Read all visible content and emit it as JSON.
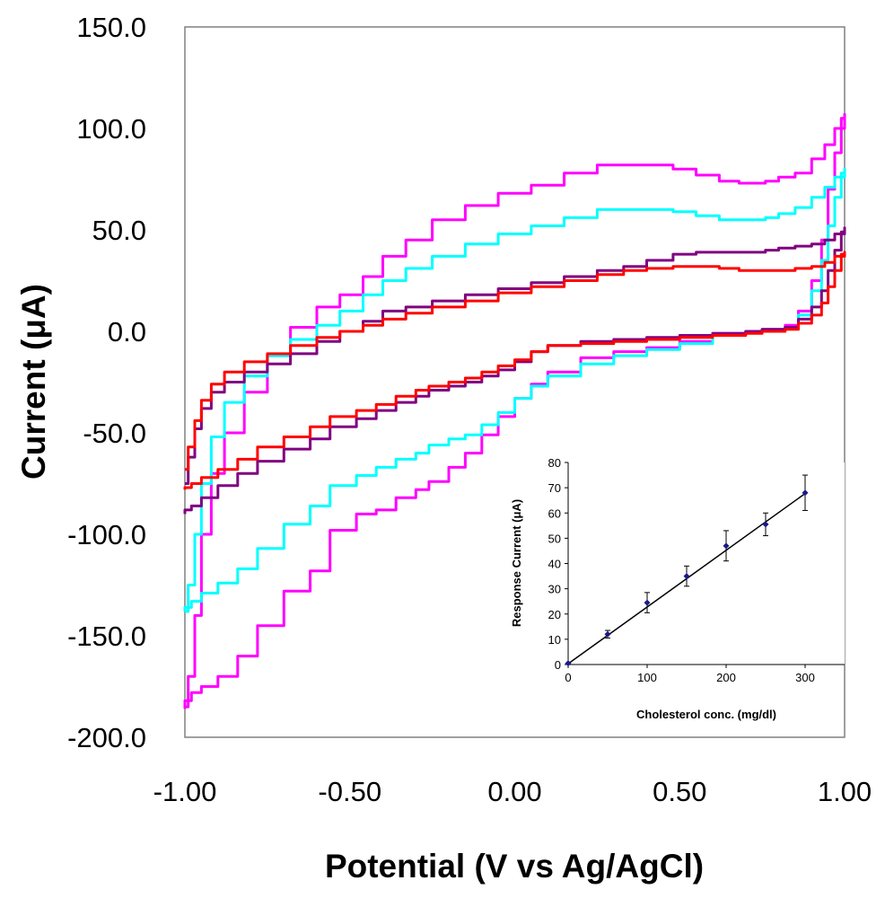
{
  "chart_data": [
    {
      "type": "line",
      "title": "",
      "xlabel": "Potential (V vs Ag/AgCl)",
      "ylabel": "Current (μA)",
      "xlim": [
        -1.0,
        1.0
      ],
      "ylim": [
        -200.0,
        150.0
      ],
      "xticks": [
        -1.0,
        -0.5,
        0.0,
        0.5,
        1.0
      ],
      "xtick_labels": [
        "-1.00",
        "-0.50",
        "0.00",
        "0.50",
        "1.00"
      ],
      "yticks": [
        150,
        100,
        50,
        0,
        -50,
        -100,
        -150,
        -200
      ],
      "ytick_labels": [
        "150.0",
        "100.0",
        "50.0",
        "0.0",
        "-50.0",
        "-100.0",
        "-150.0",
        "-200.0"
      ],
      "grid": false,
      "series": [
        {
          "name": "magenta",
          "color": "#ff00ff",
          "x": [
            -1.0,
            -0.99,
            -0.97,
            -0.95,
            -0.92,
            -0.88,
            -0.82,
            -0.75,
            -0.68,
            -0.6,
            -0.53,
            -0.46,
            -0.4,
            -0.33,
            -0.25,
            -0.15,
            -0.05,
            0.05,
            0.15,
            0.25,
            0.33,
            0.4,
            0.48,
            0.55,
            0.62,
            0.68,
            0.72,
            0.76,
            0.8,
            0.85,
            0.9,
            0.94,
            0.97,
            1.0,
            1.0,
            0.99,
            0.97,
            0.95,
            0.93,
            0.9,
            0.86,
            0.82,
            0.75,
            0.7,
            0.6,
            0.5,
            0.4,
            0.3,
            0.2,
            0.1,
            0.05,
            0.0,
            -0.05,
            -0.1,
            -0.15,
            -0.2,
            -0.26,
            -0.3,
            -0.36,
            -0.42,
            -0.48,
            -0.56,
            -0.62,
            -0.7,
            -0.78,
            -0.84,
            -0.9,
            -0.95,
            -0.98,
            -1.0
          ],
          "y": [
            -185,
            -170,
            -140,
            -100,
            -70,
            -50,
            -30,
            -12,
            2,
            12,
            18,
            27,
            37,
            45,
            55,
            62,
            68,
            72,
            78,
            82,
            82,
            82,
            80,
            77,
            74,
            73,
            73,
            74,
            76,
            78,
            85,
            92,
            100,
            107,
            105,
            88,
            70,
            45,
            25,
            10,
            3,
            1,
            0,
            -1,
            -5,
            -8,
            -10,
            -13,
            -20,
            -26,
            -33,
            -42,
            -51,
            -60,
            -67,
            -74,
            -78,
            -82,
            -88,
            -90,
            -98,
            -118,
            -128,
            -145,
            -160,
            -170,
            -175,
            -178,
            -182,
            -186
          ]
        },
        {
          "name": "cyan",
          "color": "#00ffff",
          "x": [
            -1.0,
            -0.99,
            -0.97,
            -0.95,
            -0.92,
            -0.88,
            -0.82,
            -0.75,
            -0.68,
            -0.6,
            -0.53,
            -0.46,
            -0.4,
            -0.33,
            -0.25,
            -0.15,
            -0.05,
            0.05,
            0.15,
            0.25,
            0.33,
            0.4,
            0.48,
            0.55,
            0.62,
            0.68,
            0.72,
            0.76,
            0.8,
            0.85,
            0.9,
            0.94,
            0.97,
            1.0,
            1.0,
            0.99,
            0.97,
            0.95,
            0.93,
            0.9,
            0.86,
            0.82,
            0.75,
            0.7,
            0.6,
            0.5,
            0.4,
            0.3,
            0.2,
            0.1,
            0.05,
            0.0,
            -0.05,
            -0.1,
            -0.15,
            -0.2,
            -0.26,
            -0.3,
            -0.36,
            -0.42,
            -0.48,
            -0.56,
            -0.62,
            -0.7,
            -0.78,
            -0.84,
            -0.9,
            -0.95,
            -0.98,
            -1.0
          ],
          "y": [
            -138,
            -125,
            -100,
            -75,
            -52,
            -35,
            -22,
            -12,
            -4,
            3,
            10,
            18,
            25,
            31,
            37,
            43,
            48,
            52,
            56,
            60,
            60,
            60,
            59,
            57,
            55,
            55,
            55,
            56,
            58,
            61,
            66,
            71,
            76,
            80,
            78,
            66,
            52,
            35,
            20,
            8,
            2,
            1,
            0,
            -2,
            -6,
            -9,
            -12,
            -16,
            -22,
            -27,
            -33,
            -40,
            -46,
            -51,
            -53,
            -56,
            -60,
            -63,
            -67,
            -71,
            -76,
            -86,
            -95,
            -107,
            -117,
            -124,
            -129,
            -133,
            -136,
            -138
          ]
        },
        {
          "name": "purple",
          "color": "#800080",
          "x": [
            -1.0,
            -0.99,
            -0.97,
            -0.95,
            -0.92,
            -0.88,
            -0.82,
            -0.75,
            -0.68,
            -0.6,
            -0.53,
            -0.46,
            -0.4,
            -0.33,
            -0.25,
            -0.15,
            -0.05,
            0.05,
            0.15,
            0.25,
            0.33,
            0.4,
            0.48,
            0.55,
            0.62,
            0.68,
            0.72,
            0.76,
            0.8,
            0.85,
            0.9,
            0.94,
            0.97,
            1.0,
            1.0,
            0.99,
            0.97,
            0.95,
            0.93,
            0.9,
            0.86,
            0.82,
            0.75,
            0.7,
            0.6,
            0.5,
            0.4,
            0.3,
            0.2,
            0.1,
            0.05,
            0.0,
            -0.05,
            -0.1,
            -0.15,
            -0.2,
            -0.26,
            -0.3,
            -0.36,
            -0.42,
            -0.48,
            -0.56,
            -0.62,
            -0.7,
            -0.78,
            -0.84,
            -0.9,
            -0.95,
            -0.98,
            -1.0
          ],
          "y": [
            -75,
            -62,
            -48,
            -38,
            -30,
            -25,
            -20,
            -16,
            -11,
            -5,
            0,
            5,
            10,
            12,
            15,
            18,
            21,
            24,
            27,
            30,
            32,
            35,
            38,
            39,
            39,
            39,
            39,
            40,
            41,
            42,
            43,
            45,
            48,
            51,
            49,
            40,
            30,
            20,
            12,
            6,
            2,
            1,
            0,
            -1,
            -2,
            -3,
            -4,
            -5,
            -7,
            -10,
            -15,
            -19,
            -22,
            -25,
            -27,
            -29,
            -32,
            -35,
            -39,
            -43,
            -47,
            -53,
            -58,
            -64,
            -70,
            -76,
            -82,
            -86,
            -88,
            -90
          ]
        },
        {
          "name": "red",
          "color": "#ff0000",
          "x": [
            -1.0,
            -0.99,
            -0.97,
            -0.95,
            -0.92,
            -0.88,
            -0.82,
            -0.75,
            -0.68,
            -0.6,
            -0.53,
            -0.46,
            -0.4,
            -0.33,
            -0.25,
            -0.15,
            -0.05,
            0.05,
            0.15,
            0.25,
            0.33,
            0.4,
            0.48,
            0.55,
            0.62,
            0.68,
            0.72,
            0.76,
            0.8,
            0.85,
            0.9,
            0.94,
            0.97,
            1.0,
            1.0,
            0.99,
            0.97,
            0.95,
            0.93,
            0.9,
            0.86,
            0.82,
            0.75,
            0.7,
            0.6,
            0.5,
            0.4,
            0.3,
            0.2,
            0.1,
            0.05,
            0.0,
            -0.05,
            -0.1,
            -0.15,
            -0.2,
            -0.26,
            -0.3,
            -0.36,
            -0.42,
            -0.48,
            -0.56,
            -0.62,
            -0.7,
            -0.78,
            -0.84,
            -0.9,
            -0.95,
            -0.98,
            -1.0
          ],
          "y": [
            -68,
            -57,
            -44,
            -34,
            -26,
            -20,
            -15,
            -11,
            -7,
            -3,
            0,
            3,
            6,
            9,
            12,
            15,
            19,
            22,
            25,
            28,
            30,
            31,
            32,
            32,
            31,
            30,
            30,
            30,
            30,
            31,
            32,
            34,
            37,
            39,
            38,
            30,
            22,
            14,
            8,
            4,
            1,
            0,
            -1,
            -2,
            -3,
            -4,
            -5,
            -6,
            -7,
            -10,
            -14,
            -17,
            -20,
            -23,
            -25,
            -27,
            -29,
            -32,
            -36,
            -39,
            -42,
            -47,
            -52,
            -57,
            -63,
            -68,
            -72,
            -75,
            -77,
            -78
          ]
        }
      ]
    },
    {
      "type": "scatter",
      "title": "",
      "xlabel": "Cholesterol conc. (mg/dl)",
      "ylabel": "Response Current (μA)",
      "xlim": [
        0,
        350
      ],
      "ylim": [
        0,
        80
      ],
      "xticks": [
        0,
        100,
        200,
        300
      ],
      "yticks": [
        0,
        10,
        20,
        30,
        40,
        50,
        60,
        70,
        80
      ],
      "grid": false,
      "series": [
        {
          "name": "response",
          "color": "#1a1a8c",
          "x": [
            0,
            50,
            100,
            150,
            200,
            250,
            300
          ],
          "y": [
            0.5,
            12,
            24.5,
            35,
            47,
            55.5,
            68
          ],
          "error": [
            0,
            1.5,
            4,
            4,
            6,
            4.5,
            7
          ]
        }
      ],
      "fit": {
        "x": [
          0,
          300
        ],
        "y": [
          0.3,
          67.7
        ],
        "color": "#000000"
      }
    }
  ]
}
